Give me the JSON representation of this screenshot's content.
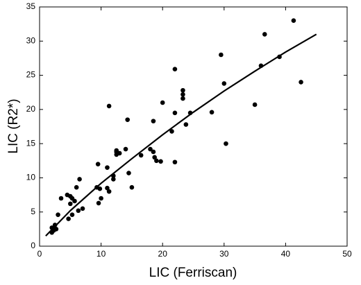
{
  "chart_data": {
    "type": "scatter",
    "xlabel": "LIC (Ferriscan)",
    "ylabel": "LIC (R2*)",
    "xlim": [
      0,
      50
    ],
    "ylim": [
      0,
      35
    ],
    "xticks": [
      0,
      10,
      20,
      30,
      40,
      50
    ],
    "yticks": [
      0,
      5,
      10,
      15,
      20,
      25,
      30,
      35
    ],
    "series": [
      {
        "type": "scatter",
        "color": "#000000",
        "x": [
          41.3,
          36.6,
          29.5,
          39,
          36,
          22,
          30,
          42.5,
          23.3,
          23.3,
          23.3,
          20,
          11.3,
          35,
          22,
          24.5,
          28,
          14.3,
          18.5,
          21.5,
          23.8,
          30.3,
          12.5,
          13,
          12.5,
          12.5,
          14,
          18,
          18.5,
          16.5,
          19,
          19.7,
          22,
          18.7,
          9.5,
          11,
          14.5,
          12,
          12,
          15,
          11,
          11.3,
          9.3,
          9.8,
          10,
          9.6,
          6.5,
          6,
          4.5,
          3.5,
          5,
          5.3,
          5.7,
          5,
          7,
          6.3,
          5.3,
          4.7,
          3,
          2.5,
          2,
          2.3,
          2,
          2.7
        ],
        "y": [
          33,
          31,
          28,
          27.7,
          26.4,
          25.9,
          23.8,
          24,
          22.8,
          22.2,
          21.6,
          21,
          20.5,
          20.7,
          19.5,
          19.5,
          19.6,
          18.5,
          18.3,
          16.8,
          17.8,
          15,
          14,
          13.6,
          13.4,
          13.8,
          14.2,
          14.2,
          13.8,
          13.3,
          12.5,
          12.4,
          12.3,
          13,
          12,
          11.5,
          10.7,
          9.8,
          10.3,
          8.6,
          8.5,
          8,
          8.6,
          8.4,
          7,
          6.3,
          9.8,
          8.6,
          7.5,
          7,
          7.3,
          7,
          6.6,
          6.2,
          5.5,
          5.2,
          4.6,
          4,
          4.6,
          3.1,
          2.7,
          2.3,
          2,
          2.5
        ]
      },
      {
        "type": "line",
        "color": "#000000",
        "x": [
          1,
          5,
          10,
          15,
          20,
          25,
          30,
          35,
          40,
          45
        ],
        "y": [
          1.5,
          5.2,
          9.2,
          12.8,
          16.3,
          19.6,
          22.7,
          25.6,
          28.4,
          31
        ]
      }
    ]
  }
}
